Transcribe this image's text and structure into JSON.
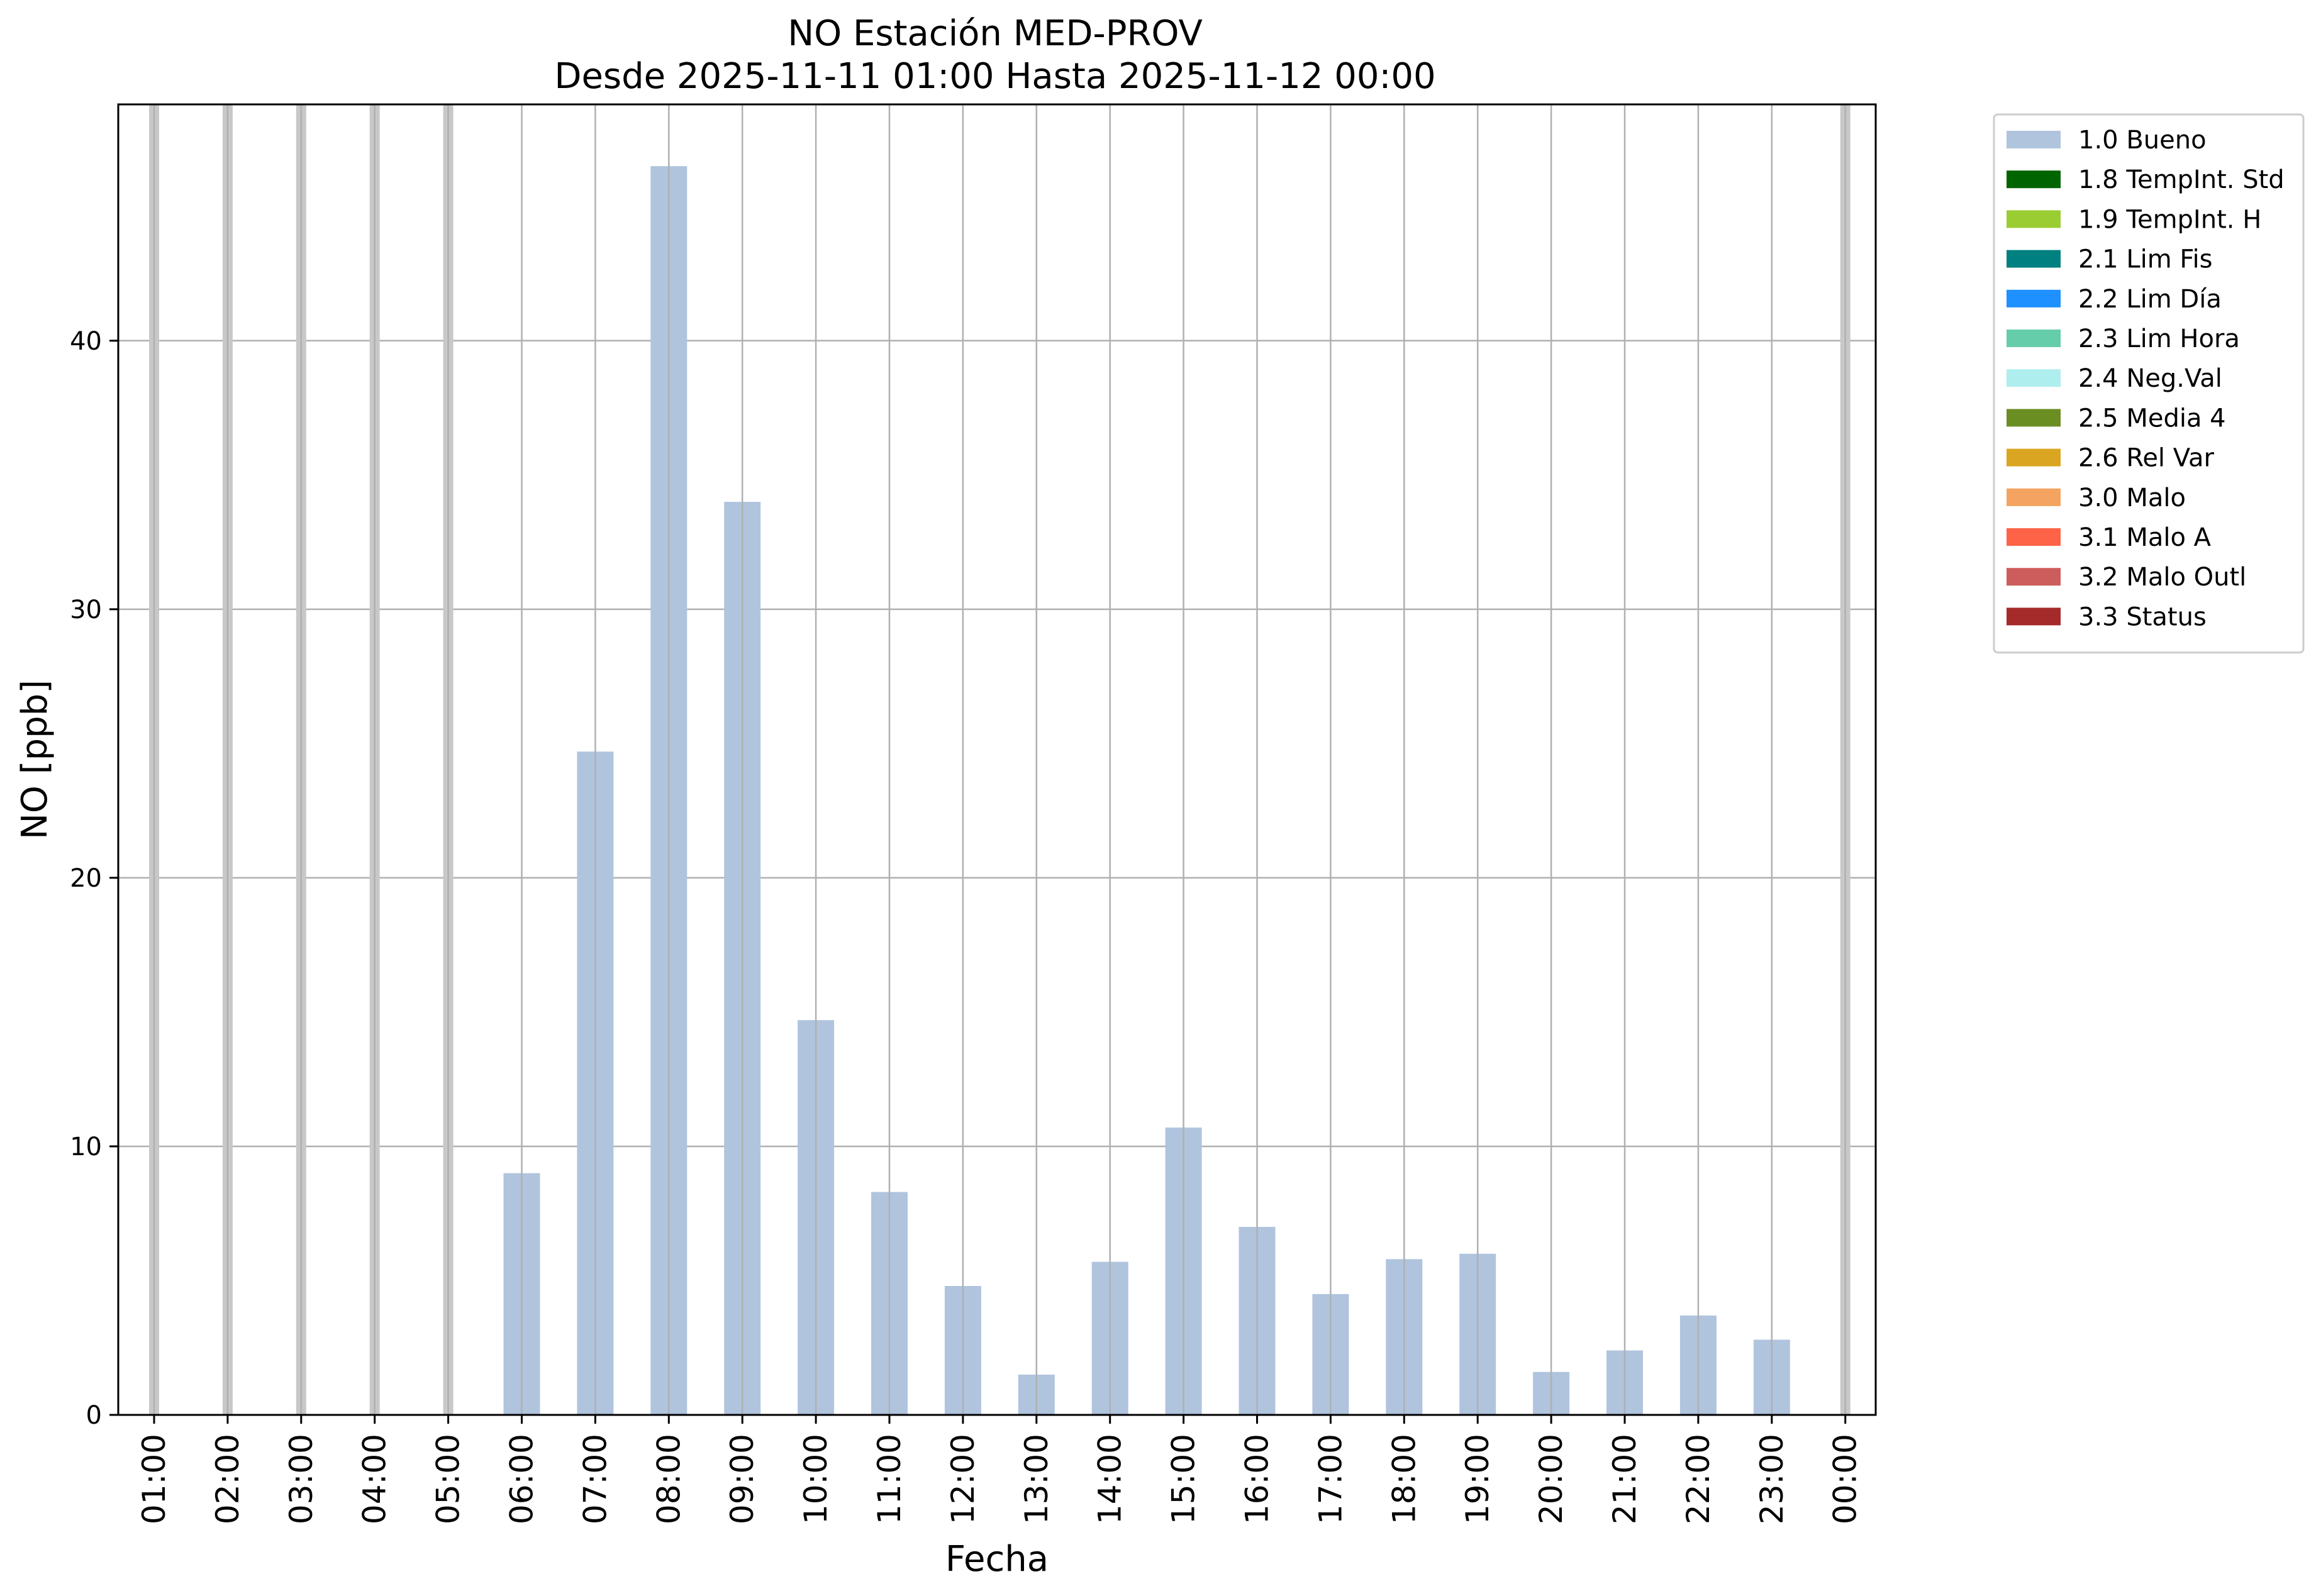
{
  "chart_data": {
    "type": "bar",
    "title": "NO Estación MED-PROV",
    "subtitle": "Desde 2025-11-11 01:00 Hasta 2025-11-12 00:00",
    "xlabel": "Fecha",
    "ylabel": "NO [ppb]",
    "categories": [
      "01:00",
      "02:00",
      "03:00",
      "04:00",
      "05:00",
      "06:00",
      "07:00",
      "08:00",
      "09:00",
      "10:00",
      "11:00",
      "12:00",
      "13:00",
      "14:00",
      "15:00",
      "16:00",
      "17:00",
      "18:00",
      "19:00",
      "20:00",
      "21:00",
      "22:00",
      "23:00",
      "00:00"
    ],
    "series": [
      {
        "name": "1.0 Bueno",
        "color": "#b0c4de",
        "values": [
          null,
          null,
          null,
          null,
          null,
          9.0,
          24.7,
          46.5,
          34.0,
          14.7,
          8.3,
          4.8,
          1.5,
          5.7,
          10.7,
          7.0,
          4.5,
          5.8,
          6.0,
          1.6,
          2.4,
          3.7,
          2.8,
          null
        ]
      }
    ],
    "missing_marker_categories": [
      "01:00",
      "02:00",
      "03:00",
      "04:00",
      "05:00",
      "00:00"
    ],
    "ylim": [
      0,
      48.8
    ],
    "yticks": [
      0,
      10,
      20,
      30,
      40
    ],
    "grid": true,
    "legend_position": "outside-top-right",
    "legend": [
      {
        "label": "1.0 Bueno",
        "color": "#b0c4de"
      },
      {
        "label": "1.8 TempInt. Std",
        "color": "#006400"
      },
      {
        "label": "1.9 TempInt. H",
        "color": "#9acd32"
      },
      {
        "label": "2.1 Lim Fis",
        "color": "#008080"
      },
      {
        "label": "2.2 Lim Día",
        "color": "#1e90ff"
      },
      {
        "label": "2.3 Lim Hora",
        "color": "#66cdaa"
      },
      {
        "label": "2.4 Neg.Val",
        "color": "#afeeee"
      },
      {
        "label": "2.5 Media 4",
        "color": "#6b8e23"
      },
      {
        "label": "2.6 Rel Var",
        "color": "#daa520"
      },
      {
        "label": "3.0 Malo",
        "color": "#f4a460"
      },
      {
        "label": "3.1 Malo A",
        "color": "#ff6347"
      },
      {
        "label": "3.2 Malo Outl",
        "color": "#cd5c5c"
      },
      {
        "label": "3.3 Status",
        "color": "#a52a2a"
      }
    ]
  },
  "colors": {
    "grid": "#b0b0b0",
    "missing_marker": "#c8c8c8",
    "axes": "#000000",
    "legend_border": "#cccccc"
  }
}
